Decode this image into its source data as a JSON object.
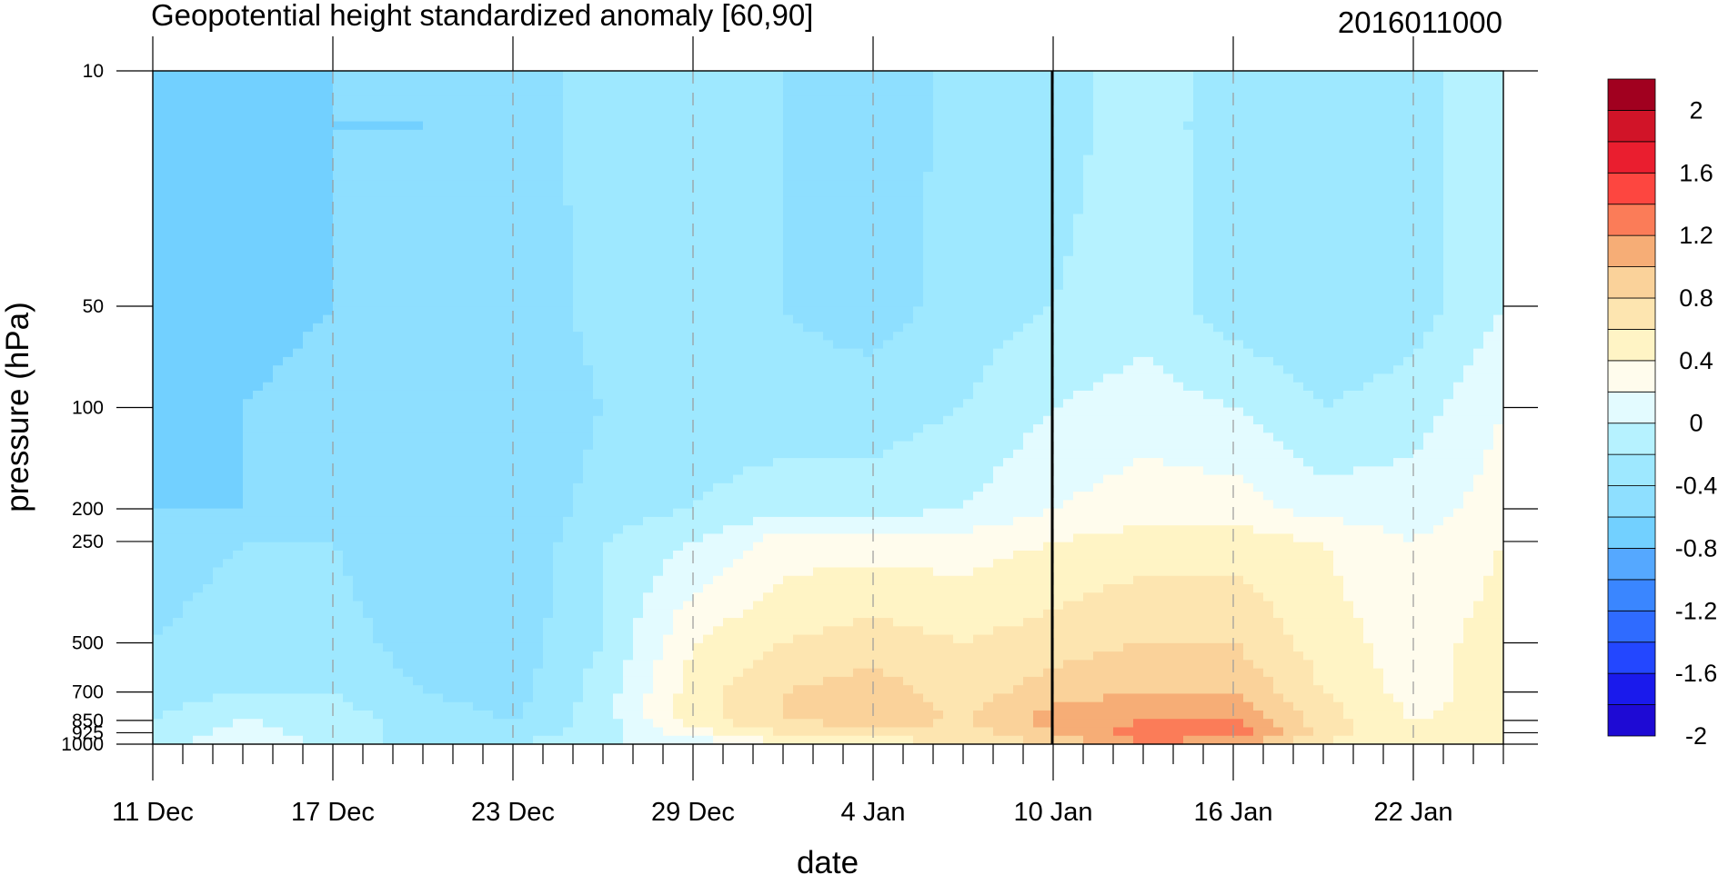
{
  "chart_data": {
    "type": "heatmap",
    "title": "Geopotential height standardized anomaly [60,90]",
    "subtitle": "2016011000",
    "xlabel": "date",
    "ylabel": "pressure (hPa)",
    "x_tick_labels": [
      "11 Dec",
      "17 Dec",
      "23 Dec",
      "29 Dec",
      "4 Jan",
      "10 Jan",
      "16 Jan",
      "22 Jan"
    ],
    "y_tick_labels": [
      "10",
      "50",
      "100",
      "200",
      "250",
      "500",
      "700",
      "850",
      "925",
      "1000"
    ],
    "y_levels": [
      10,
      50,
      100,
      200,
      250,
      500,
      700,
      850,
      925,
      1000
    ],
    "y_scale": "log-pressure (reversed)",
    "ylim": [
      1000,
      10
    ],
    "x_range_days": [
      0,
      45
    ],
    "vertical_line_date": "10 Jan",
    "colorbar": {
      "labels": [
        "2",
        "1.6",
        "1.2",
        "0.8",
        "0.4",
        "0",
        "-0.4",
        "-0.8",
        "-1.2",
        "-1.6",
        "-2"
      ],
      "levels": [
        -2.2,
        -2,
        -1.8,
        -1.6,
        -1.4,
        -1.2,
        -1,
        -0.8,
        -0.6,
        -0.4,
        -0.2,
        0,
        0.2,
        0.4,
        0.6,
        0.8,
        1,
        1.2,
        1.4,
        1.6,
        1.8,
        2,
        2.2
      ],
      "colors": [
        "#1e0ad4",
        "#1a1aec",
        "#2347ff",
        "#2f6bff",
        "#3a86ff",
        "#55a8ff",
        "#72d0ff",
        "#8edfff",
        "#9ee8ff",
        "#b6f2ff",
        "#e3fbff",
        "#fffced",
        "#fff4c5",
        "#fde5b0",
        "#fad29a",
        "#f6ad76",
        "#fb7c58",
        "#fd4640",
        "#ea1e2f",
        "#d11428",
        "#a1001f"
      ]
    },
    "field": {
      "x_days": [
        0,
        3,
        6,
        9,
        12,
        15,
        18,
        21,
        24,
        27,
        30,
        33,
        36,
        39,
        42,
        45
      ],
      "values": [
        [
          -1.0,
          -1.0,
          -0.8,
          -0.8,
          -0.7,
          -0.5,
          -0.5,
          -0.6,
          -0.8,
          -0.5,
          -0.5,
          -0.3,
          -0.5,
          -0.6,
          -0.5,
          -0.2
        ],
        [
          -1.0,
          -0.9,
          -0.8,
          -0.8,
          -0.8,
          -0.5,
          -0.5,
          -0.6,
          -0.7,
          -0.5,
          -0.4,
          -0.3,
          -0.5,
          -0.6,
          -0.5,
          -0.2
        ],
        [
          -0.9,
          -0.8,
          -0.7,
          -0.7,
          -0.8,
          -0.6,
          -0.5,
          -0.5,
          -0.5,
          -0.4,
          -0.2,
          -0.1,
          -0.2,
          -0.4,
          -0.3,
          0.0
        ],
        [
          -0.8,
          -0.8,
          -0.7,
          -0.7,
          -0.8,
          -0.5,
          -0.4,
          -0.3,
          -0.3,
          -0.2,
          0.0,
          0.1,
          0.1,
          -0.1,
          -0.1,
          0.1
        ],
        [
          -0.7,
          -0.6,
          -0.6,
          -0.8,
          -0.8,
          -0.4,
          -0.2,
          0.1,
          0.1,
          0.1,
          0.2,
          0.3,
          0.3,
          0.2,
          0.0,
          0.2
        ],
        [
          -0.6,
          -0.5,
          -0.5,
          -0.7,
          -0.7,
          -0.4,
          0.2,
          0.4,
          0.5,
          0.4,
          0.5,
          0.6,
          0.6,
          0.3,
          0.1,
          0.3
        ],
        [
          -0.5,
          -0.4,
          -0.4,
          -0.6,
          -0.7,
          -0.3,
          0.3,
          0.6,
          0.7,
          0.5,
          0.7,
          0.8,
          0.8,
          0.4,
          0.1,
          0.3
        ],
        [
          -0.4,
          -0.2,
          -0.3,
          -0.5,
          -0.6,
          -0.3,
          0.3,
          0.6,
          0.7,
          0.6,
          0.9,
          1.0,
          1.0,
          0.5,
          0.2,
          0.3
        ],
        [
          -0.4,
          -0.1,
          -0.3,
          -0.5,
          -0.5,
          -0.3,
          0.1,
          0.4,
          0.5,
          0.5,
          0.8,
          1.1,
          1.2,
          0.5,
          0.2,
          0.3
        ],
        [
          -0.3,
          0.0,
          -0.3,
          -0.5,
          -0.4,
          -0.2,
          -0.2,
          0.2,
          0.3,
          0.4,
          0.6,
          1.0,
          0.8,
          0.4,
          0.2,
          0.3
        ]
      ]
    }
  }
}
